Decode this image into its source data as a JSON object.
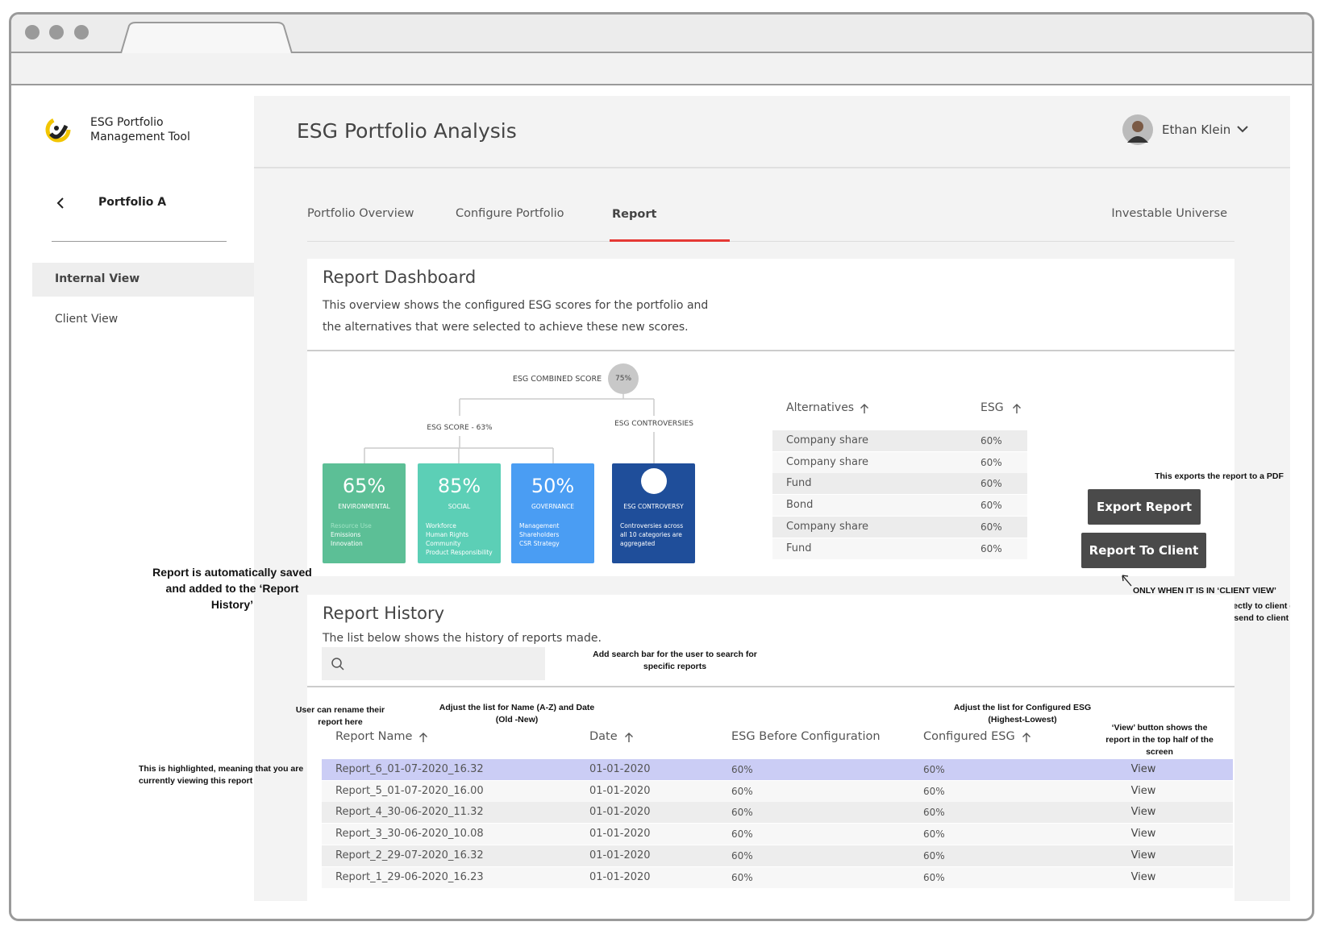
{
  "app": {
    "name": [
      "ESG Portfolio",
      "Management Tool"
    ]
  },
  "header": {
    "title": "ESG Portfolio Analysis",
    "user": "Ethan Klein"
  },
  "sidebar": {
    "portfolio": "Portfolio A",
    "items": [
      "Internal View",
      "Client View"
    ]
  },
  "tabs": [
    "Portfolio Overview",
    "Configure Portfolio",
    "Report",
    "Investable Universe"
  ],
  "dashboard": {
    "title": "Report Dashboard",
    "description": [
      "This overview shows the configured ESG scores for the portfolio and",
      "the alternatives that were selected to achieve these new scores."
    ],
    "combined_label": "ESG COMBINED SCORE",
    "combined_value": "75%",
    "score_label": "ESG SCORE - 63%",
    "controversies_label": "ESG CONTROVERSIES",
    "cards": [
      {
        "value": "65%",
        "label": "ENVIRONMENTAL",
        "items": [
          "Resource Use",
          "Emissions",
          "Innovation"
        ]
      },
      {
        "value": "85%",
        "label": "SOCIAL",
        "items": [
          "Workforce",
          "Human Rights",
          "Community",
          "Product Responsibility"
        ]
      },
      {
        "value": "50%",
        "label": "GOVERNANCE",
        "items": [
          "Management",
          "Shareholders",
          "CSR Strategy"
        ]
      }
    ],
    "controversy": {
      "label": "ESG CONTROVERSY",
      "items": [
        "Controversies across",
        "all 10 categories are",
        "aggregated"
      ]
    }
  },
  "alternatives": {
    "headers": [
      "Alternatives",
      "ESG"
    ],
    "rows": [
      [
        "Company share",
        "60%"
      ],
      [
        "Company share",
        "60%"
      ],
      [
        "Fund",
        "60%"
      ],
      [
        "Bond",
        "60%"
      ],
      [
        "Company share",
        "60%"
      ],
      [
        "Fund",
        "60%"
      ]
    ]
  },
  "buttons": [
    "Export Report",
    "Report To Client"
  ],
  "history": {
    "title": "Report History",
    "description": "The list below shows the history of reports made.",
    "headers": [
      "Report Name",
      "Date",
      "ESG Before Configuration",
      "Configured ESG",
      ""
    ],
    "rows": [
      [
        "Report_6_01-07-2020_16.32",
        "01-01-2020",
        "60%",
        "60%",
        "View"
      ],
      [
        "Report_5_01-07-2020_16.00",
        "01-01-2020",
        "60%",
        "60%",
        "View"
      ],
      [
        "Report_4_30-06-2020_11.32",
        "01-01-2020",
        "60%",
        "60%",
        "View"
      ],
      [
        "Report_3_30-06-2020_10.08",
        "01-01-2020",
        "60%",
        "60%",
        "View"
      ],
      [
        "Report_2_29-07-2020_16.32",
        "01-01-2020",
        "60%",
        "60%",
        "View"
      ],
      [
        "Report_1_29-06-2020_16.23",
        "01-01-2020",
        "60%",
        "60%",
        "View"
      ]
    ]
  },
  "annotations": {
    "export": "This exports the report to a PDF",
    "saved": [
      "Report is automatically saved",
      "and added to the ‘Report",
      "History’"
    ],
    "client_view": "ONLY WHEN IT IS IN ‘CLIENT VIEW’",
    "client_action": [
      "Either sends an email directly to client or",
      "prints as PDF for user to send to client"
    ],
    "search": [
      "Add search bar for the user to search for",
      "specific reports"
    ],
    "rename": [
      "User can rename their",
      "report here"
    ],
    "sort_name": [
      "Adjust the list for Name (A-Z) and Date",
      "(Old -New)"
    ],
    "sort_esg": [
      "Adjust the list for Configured ESG",
      "(Highest-Lowest)"
    ],
    "view": [
      "‘View’ button shows the",
      "report in the top half of the",
      "screen"
    ],
    "highlighted": [
      "This is highlighted, meaning that you are",
      "currently viewing this report"
    ]
  }
}
